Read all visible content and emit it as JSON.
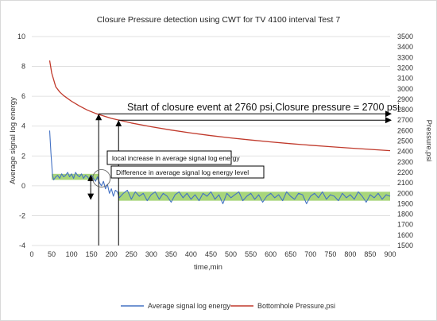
{
  "chart_data": {
    "type": "line",
    "title": "Closure Pressure detection using CWT for TV 4100 interval Test 7",
    "xlabel": "time,min",
    "ylabel_left": "Average signal log energy",
    "ylabel_right": "Pressure,psi",
    "xlim": [
      0,
      900
    ],
    "x_ticks": [
      0,
      50,
      100,
      150,
      200,
      250,
      300,
      350,
      400,
      450,
      500,
      550,
      600,
      650,
      700,
      750,
      800,
      850,
      900
    ],
    "ylim_left": [
      -4,
      10
    ],
    "y_left_ticks": [
      -4,
      -2,
      0,
      2,
      4,
      6,
      8,
      10
    ],
    "ylim_right": [
      1500,
      3500
    ],
    "y_right_ticks": [
      1500,
      1600,
      1700,
      1800,
      1900,
      2000,
      2100,
      2200,
      2300,
      2400,
      2500,
      2600,
      2700,
      2800,
      2900,
      3000,
      3100,
      3200,
      3300,
      3400,
      3500
    ],
    "grid": "horizontal",
    "legend_position": "bottom",
    "series": [
      {
        "name": "Average signal log energy",
        "axis": "left",
        "color": "#4472C4",
        "x": [
          45,
          48,
          52,
          55,
          60,
          65,
          70,
          75,
          80,
          85,
          90,
          95,
          100,
          105,
          110,
          115,
          120,
          125,
          130,
          135,
          140,
          145,
          150,
          155,
          160,
          165,
          170,
          175,
          180,
          185,
          190,
          195,
          200,
          205,
          210,
          215,
          220,
          230,
          240,
          250,
          260,
          270,
          280,
          290,
          300,
          310,
          320,
          330,
          340,
          350,
          360,
          370,
          380,
          390,
          400,
          410,
          420,
          430,
          440,
          450,
          460,
          470,
          480,
          490,
          500,
          510,
          520,
          530,
          540,
          550,
          560,
          570,
          580,
          590,
          600,
          610,
          620,
          630,
          640,
          650,
          660,
          670,
          680,
          690,
          700,
          710,
          720,
          730,
          740,
          750,
          760,
          770,
          780,
          790,
          800,
          810,
          820,
          830,
          840,
          850,
          860,
          870,
          880,
          890,
          900
        ],
        "values": [
          3.7,
          2.2,
          0.7,
          0.4,
          0.6,
          0.7,
          0.5,
          0.8,
          0.6,
          0.7,
          0.9,
          0.6,
          0.8,
          0.5,
          0.9,
          0.7,
          0.6,
          0.8,
          0.5,
          0.7,
          0.6,
          0.4,
          0.7,
          0.5,
          0.3,
          0.6,
          0.2,
          0.0,
          0.3,
          -0.2,
          0.1,
          -0.5,
          -0.2,
          -0.7,
          -0.3,
          -0.4,
          -0.8,
          -0.5,
          -0.3,
          -0.9,
          -0.4,
          -0.7,
          -0.5,
          -1.0,
          -0.6,
          -0.4,
          -0.9,
          -0.5,
          -0.7,
          -1.1,
          -0.6,
          -0.4,
          -0.8,
          -0.5,
          -0.9,
          -0.6,
          -1.0,
          -0.5,
          -0.7,
          -0.4,
          -0.9,
          -0.6,
          -1.2,
          -0.5,
          -0.8,
          -0.6,
          -0.4,
          -1.0,
          -0.7,
          -0.5,
          -0.9,
          -0.6,
          -1.1,
          -0.7,
          -0.5,
          -0.8,
          -0.6,
          -1.0,
          -0.4,
          -0.7,
          -0.9,
          -0.5,
          -0.6,
          -1.2,
          -0.7,
          -0.5,
          -0.8,
          -0.4,
          -0.9,
          -0.6,
          -0.7,
          -1.0,
          -0.5,
          -0.8,
          -0.6,
          -0.9,
          -0.4,
          -0.7,
          -1.1,
          -0.6,
          -0.8,
          -0.5,
          -0.9,
          -0.6,
          -0.7
        ]
      },
      {
        "name": "Bottomhole Pressure,psi",
        "axis": "right",
        "color": "#C0392B",
        "x": [
          45,
          50,
          60,
          70,
          80,
          100,
          120,
          140,
          160,
          180,
          200,
          250,
          300,
          350,
          400,
          450,
          500,
          550,
          600,
          650,
          700,
          750,
          800,
          850,
          900
        ],
        "values": [
          3270,
          3150,
          3020,
          2970,
          2935,
          2880,
          2835,
          2795,
          2765,
          2740,
          2717,
          2673,
          2637,
          2605,
          2577,
          2552,
          2530,
          2510,
          2492,
          2475,
          2460,
          2446,
          2432,
          2420,
          2408
        ]
      }
    ],
    "bands": [
      {
        "x": [
          50,
          168
        ],
        "y": [
          0.4,
          0.8
        ],
        "color": "#9FD16B"
      },
      {
        "x": [
          218,
          900
        ],
        "y": [
          -1.0,
          -0.4
        ],
        "color": "#9FD16B"
      }
    ],
    "annotations": {
      "closure_event": "Start of closure event at 2760 psi,Closure pressure = 2700 psi",
      "local_increase": "local increase in average signal log energy",
      "difference": "Difference in average signal log energy level"
    },
    "marker_lines": {
      "start_time": 168,
      "start_pressure": 2760,
      "closure_time": 218,
      "closure_pressure": 2700,
      "circle_center": [
        175,
        0.5
      ]
    }
  }
}
